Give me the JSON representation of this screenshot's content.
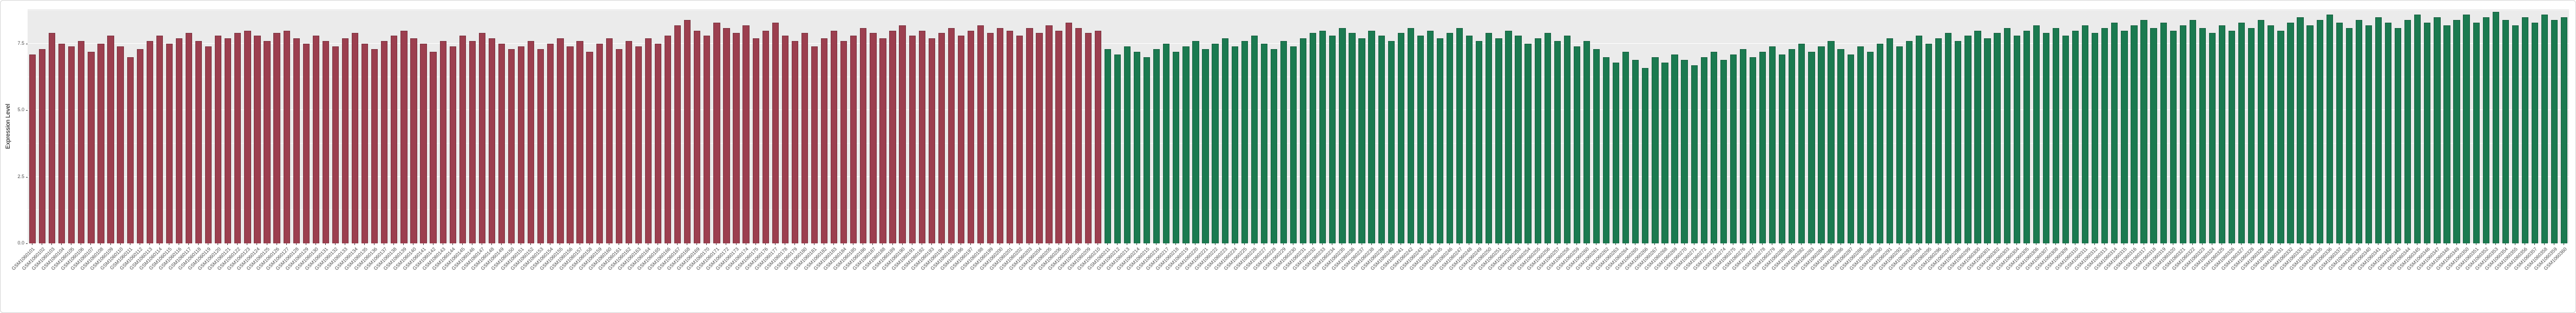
{
  "figure": {
    "background": "#ffffff",
    "panel_background": "#ebebeb",
    "grid_major_color": "#ffffff",
    "border_color": "#d4d4d4"
  },
  "chart_data": {
    "type": "bar",
    "title": "",
    "xlabel": "",
    "ylabel": "Expression Level",
    "ylim": [
      0,
      8.8
    ],
    "yticks": [
      0.0,
      2.5,
      5.0,
      7.5
    ],
    "grid": true,
    "legend": "none",
    "bar_outline": "rgba(0,0,0,0.22)",
    "groups": [
      {
        "name": "group-1-red",
        "color": "#9c3f4f",
        "label_prefix": "GSM",
        "label_start": 1060101,
        "values": [
          7.1,
          7.3,
          7.9,
          7.5,
          7.4,
          7.6,
          7.2,
          7.5,
          7.8,
          7.4,
          7.0,
          7.3,
          7.6,
          7.8,
          7.5,
          7.7,
          7.9,
          7.6,
          7.4,
          7.8,
          7.7,
          7.9,
          8.0,
          7.8,
          7.6,
          7.9,
          8.0,
          7.7,
          7.5,
          7.8,
          7.6,
          7.4,
          7.7,
          7.9,
          7.5,
          7.3,
          7.6,
          7.8,
          8.0,
          7.7,
          7.5,
          7.2,
          7.6,
          7.4,
          7.8,
          7.6,
          7.9,
          7.7,
          7.5,
          7.3,
          7.4,
          7.6,
          7.3,
          7.5,
          7.7,
          7.4,
          7.6,
          7.2,
          7.5,
          7.7,
          7.3,
          7.6,
          7.4,
          7.7,
          7.5,
          7.8,
          8.2,
          8.4,
          8.0,
          7.8,
          8.3,
          8.1,
          7.9,
          8.2,
          7.7,
          8.0,
          8.3,
          7.8,
          7.6,
          7.9,
          7.4,
          7.7,
          8.0,
          7.6,
          7.8,
          8.1,
          7.9,
          7.7,
          8.0,
          8.2,
          7.8,
          8.0,
          7.7,
          7.9,
          8.1,
          7.8,
          8.0,
          8.2,
          7.9,
          8.1,
          8.0,
          7.8,
          8.1,
          7.9,
          8.2,
          8.0,
          8.3,
          8.1,
          7.9,
          8.0
        ]
      },
      {
        "name": "group-2-green",
        "color": "#1b7a50",
        "label_prefix": "GSM",
        "label_start": 1060211,
        "values": [
          7.3,
          7.1,
          7.4,
          7.2,
          7.0,
          7.3,
          7.5,
          7.2,
          7.4,
          7.6,
          7.3,
          7.5,
          7.7,
          7.4,
          7.6,
          7.8,
          7.5,
          7.3,
          7.6,
          7.4,
          7.7,
          7.9,
          8.0,
          7.8,
          8.1,
          7.9,
          7.7,
          8.0,
          7.8,
          7.6,
          7.9,
          8.1,
          7.8,
          8.0,
          7.7,
          7.9,
          8.1,
          7.8,
          7.6,
          7.9,
          7.7,
          8.0,
          7.8,
          7.5,
          7.7,
          7.9,
          7.6,
          7.8,
          7.4,
          7.6,
          7.3,
          7.0,
          6.8,
          7.2,
          6.9,
          6.6,
          7.0,
          6.8,
          7.1,
          6.9,
          6.7,
          7.0,
          7.2,
          6.9,
          7.1,
          7.3,
          7.0,
          7.2,
          7.4,
          7.1,
          7.3,
          7.5,
          7.2,
          7.4,
          7.6,
          7.3,
          7.1,
          7.4,
          7.2,
          7.5,
          7.7,
          7.4,
          7.6,
          7.8,
          7.5,
          7.7,
          7.9,
          7.6,
          7.8,
          8.0,
          7.7,
          7.9,
          8.1,
          7.8,
          8.0,
          8.2,
          7.9,
          8.1,
          7.8,
          8.0,
          8.2,
          7.9,
          8.1,
          8.3,
          8.0,
          8.2,
          8.4,
          8.1,
          8.3,
          8.0,
          8.2,
          8.4,
          8.1,
          7.9,
          8.2,
          8.0,
          8.3,
          8.1,
          8.4,
          8.2,
          8.0,
          8.3,
          8.5,
          8.2,
          8.4,
          8.6,
          8.3,
          8.1,
          8.4,
          8.2,
          8.5,
          8.3,
          8.1,
          8.4,
          8.6,
          8.3,
          8.5,
          8.2,
          8.4,
          8.6,
          8.3,
          8.5,
          8.7,
          8.4,
          8.2,
          8.5,
          8.3,
          8.6,
          8.4,
          8.5
        ]
      }
    ]
  }
}
